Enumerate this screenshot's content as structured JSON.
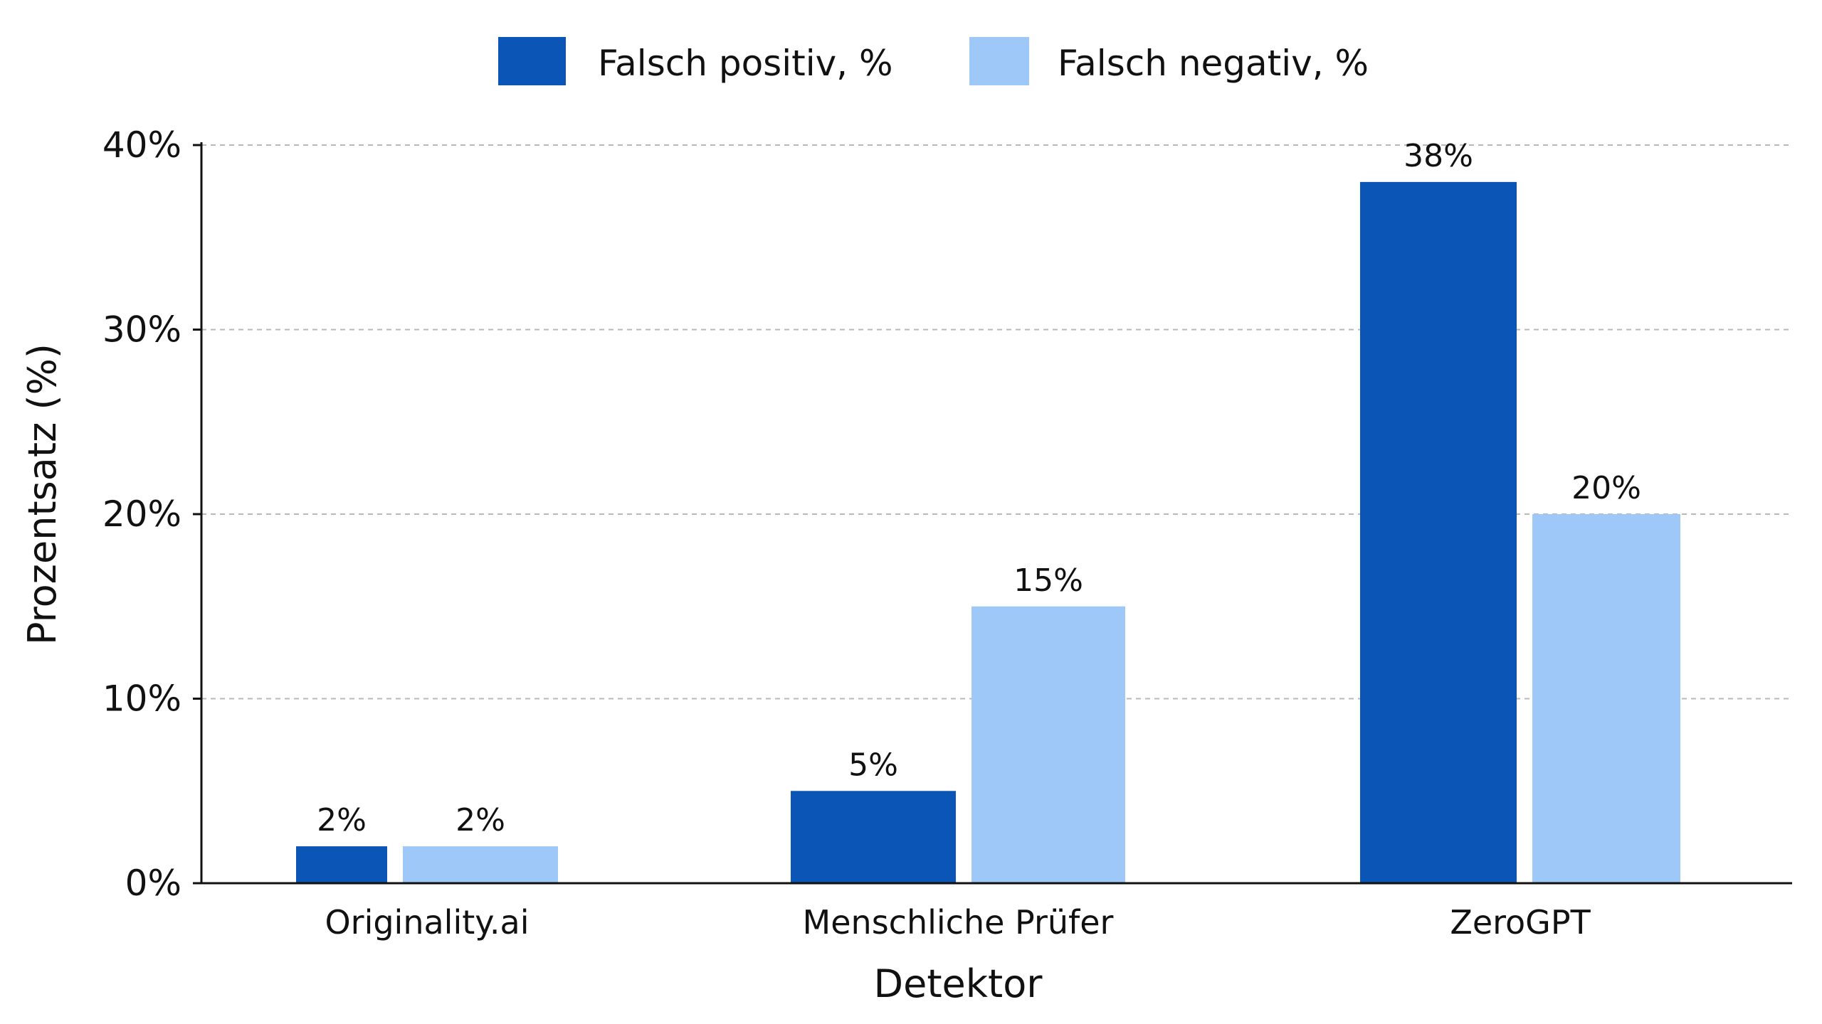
{
  "chart_data": {
    "type": "bar",
    "title": "",
    "xlabel": "Detektor",
    "ylabel": "Prozentsatz (%)",
    "categories": [
      "Originality.ai",
      "Menschliche Prüfer",
      "ZeroGPT"
    ],
    "series": [
      {
        "name": "Falsch positiv, %",
        "color": "#0a55b5",
        "values": [
          2,
          5,
          38
        ]
      },
      {
        "name": "Falsch negativ, %",
        "color": "#9ec8f7",
        "values": [
          2,
          15,
          20
        ]
      }
    ],
    "value_labels": [
      [
        "2%",
        "5%",
        "38%"
      ],
      [
        "2%",
        "15%",
        "20%"
      ]
    ],
    "ylim": [
      0,
      40
    ],
    "yticks": [
      0,
      10,
      20,
      30,
      40
    ],
    "ytick_labels": [
      "0%",
      "10%",
      "20%",
      "30%",
      "40%"
    ],
    "grid": true,
    "legend_position": "top-center"
  }
}
